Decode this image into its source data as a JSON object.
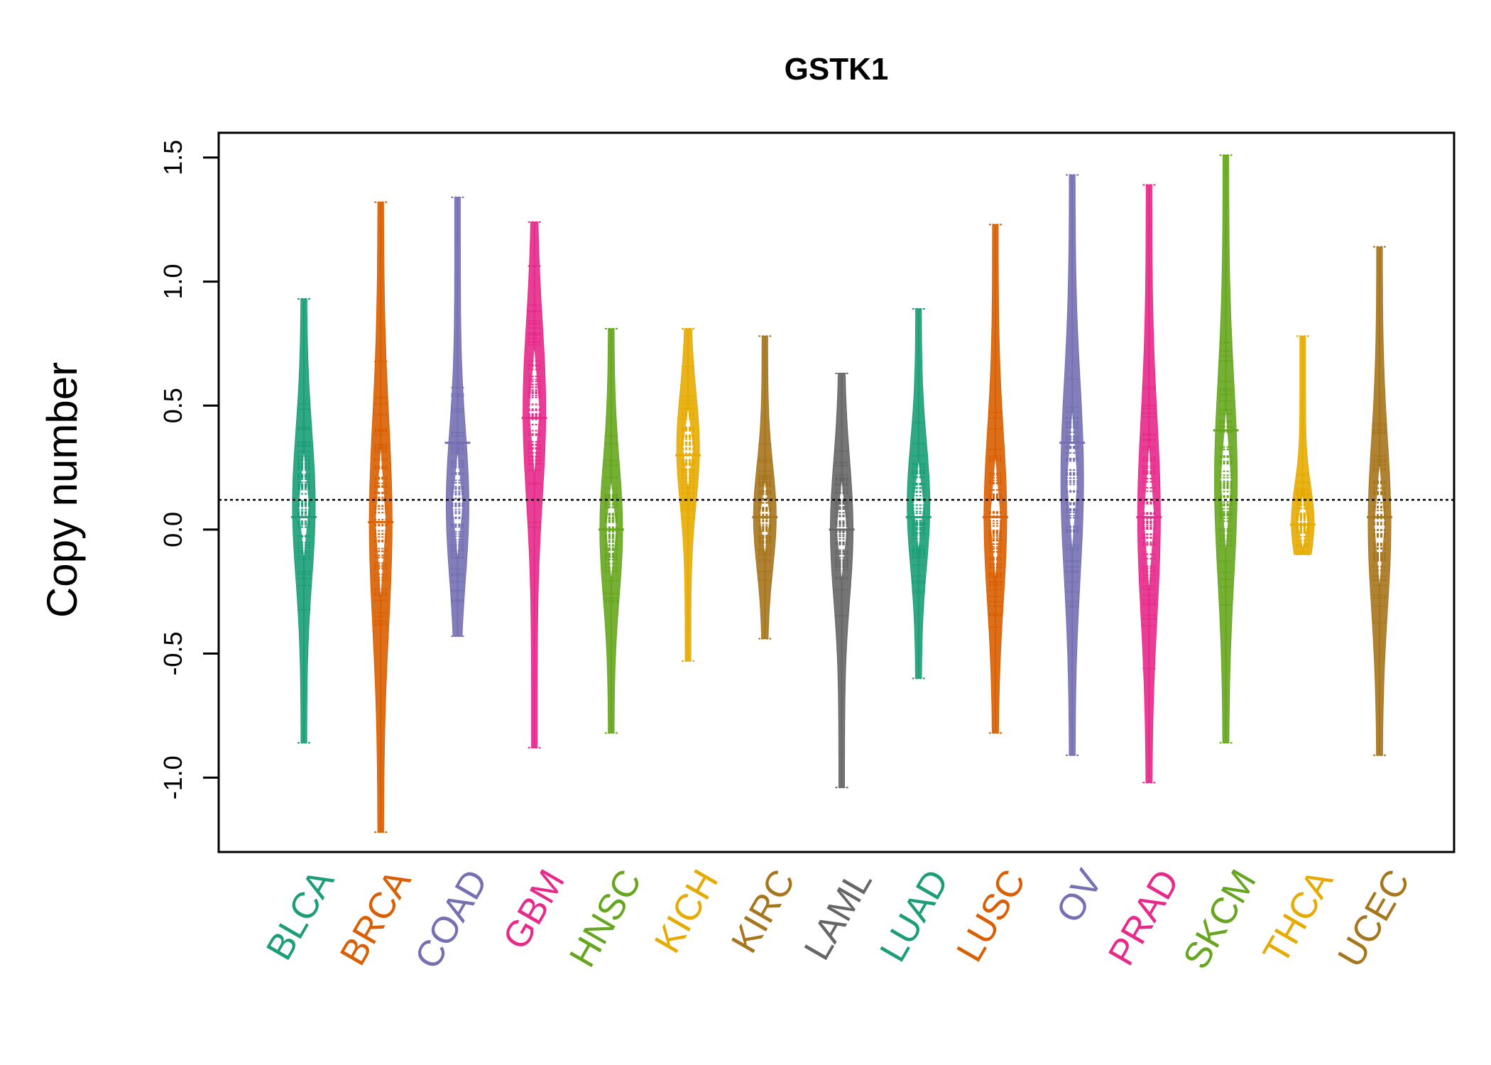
{
  "chart_data": {
    "type": "beanplot",
    "title": "GSTK1",
    "xlabel": "",
    "ylabel": "Copy number",
    "ylim": [
      -1.3,
      1.6
    ],
    "yticks": [
      -1.0,
      -0.5,
      0.0,
      0.5,
      1.0,
      1.5
    ],
    "ytick_labels": [
      "-1.0",
      "-0.5",
      "0.0",
      "0.5",
      "1.0",
      "1.5"
    ],
    "reference_line": 0.12,
    "grid": false,
    "legend": "none",
    "categories": [
      "BLCA",
      "BRCA",
      "COAD",
      "GBM",
      "HNSC",
      "KICH",
      "KIRC",
      "LAML",
      "LUAD",
      "LUSC",
      "OV",
      "PRAD",
      "SKCM",
      "THCA",
      "UCEC"
    ],
    "colors": [
      "#1B9E77",
      "#D95F02",
      "#7570B3",
      "#E7298A",
      "#66A61E",
      "#E6AB02",
      "#A6761D",
      "#666666",
      "#1B9E77",
      "#D95F02",
      "#7570B3",
      "#E7298A",
      "#66A61E",
      "#E6AB02",
      "#A6761D"
    ],
    "series": [
      {
        "category": "BLCA",
        "min": -0.86,
        "max": 0.93,
        "mean": 0.05,
        "mode": 0.1
      },
      {
        "category": "BRCA",
        "min": -1.22,
        "max": 1.32,
        "mean": 0.03,
        "mode": 0.03
      },
      {
        "category": "COAD",
        "min": -0.43,
        "max": 1.34,
        "mean": 0.35,
        "mode": 0.1
      },
      {
        "category": "GBM",
        "min": -0.88,
        "max": 1.24,
        "mean": 0.45,
        "mode": 0.48
      },
      {
        "category": "HNSC",
        "min": -0.82,
        "max": 0.81,
        "mean": 0.0,
        "mode": 0.0
      },
      {
        "category": "KICH",
        "min": -0.53,
        "max": 0.81,
        "mean": 0.3,
        "mode": 0.33
      },
      {
        "category": "KIRC",
        "min": -0.44,
        "max": 0.78,
        "mean": 0.05,
        "mode": 0.05
      },
      {
        "category": "LAML",
        "min": -1.04,
        "max": 0.63,
        "mean": 0.0,
        "mode": 0.0
      },
      {
        "category": "LUAD",
        "min": -0.6,
        "max": 0.89,
        "mean": 0.05,
        "mode": 0.1
      },
      {
        "category": "LUSC",
        "min": -0.82,
        "max": 1.23,
        "mean": 0.05,
        "mode": 0.05
      },
      {
        "category": "OV",
        "min": -0.91,
        "max": 1.43,
        "mean": 0.35,
        "mode": 0.2
      },
      {
        "category": "PRAD",
        "min": -1.02,
        "max": 1.39,
        "mean": 0.05,
        "mode": 0.05
      },
      {
        "category": "SKCM",
        "min": -0.86,
        "max": 1.51,
        "mean": 0.4,
        "mode": 0.2
      },
      {
        "category": "THCA",
        "min": -0.1,
        "max": 0.78,
        "mean": 0.02,
        "mode": 0.03
      },
      {
        "category": "UCEC",
        "min": -0.91,
        "max": 1.14,
        "mean": 0.05,
        "mode": 0.02
      }
    ]
  }
}
